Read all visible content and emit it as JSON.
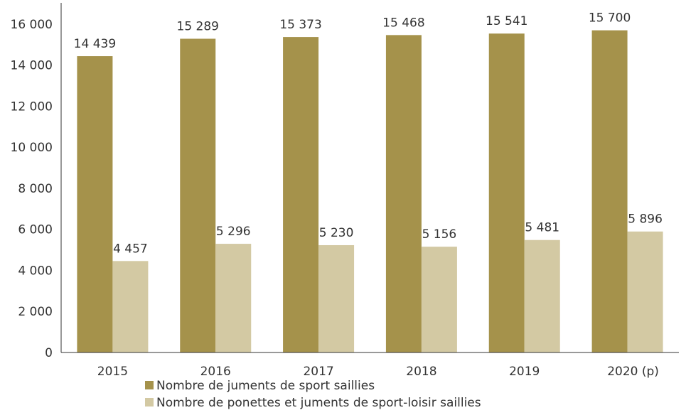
{
  "chart_data": {
    "type": "bar",
    "categories": [
      "2015",
      "2016",
      "2017",
      "2018",
      "2019",
      "2020 (p)"
    ],
    "series": [
      {
        "name": "Nombre de juments de sport saillies",
        "values": [
          14439,
          15289,
          15373,
          15468,
          15541,
          15700
        ],
        "labels": [
          "14 439",
          "15 289",
          "15 373",
          "15 468",
          "15 541",
          "15 700"
        ],
        "color": "#a5924b"
      },
      {
        "name": "Nombre de ponettes et juments de sport-loisir saillies",
        "values": [
          4457,
          5296,
          5230,
          5156,
          5481,
          5896
        ],
        "labels": [
          "4 457",
          "5 296",
          "5 230",
          "5 156",
          "5 481",
          "5 896"
        ],
        "color": "#d3c9a3"
      }
    ],
    "y_ticks": [
      0,
      2000,
      4000,
      6000,
      8000,
      10000,
      12000,
      14000,
      16000
    ],
    "y_tick_labels": [
      "0",
      "2 000",
      "4 000",
      "6 000",
      "8 000",
      "10 000",
      "12 000",
      "14 000",
      "16 000"
    ],
    "ylim": [
      0,
      16900
    ],
    "grid": false,
    "legend_position": "bottom"
  }
}
